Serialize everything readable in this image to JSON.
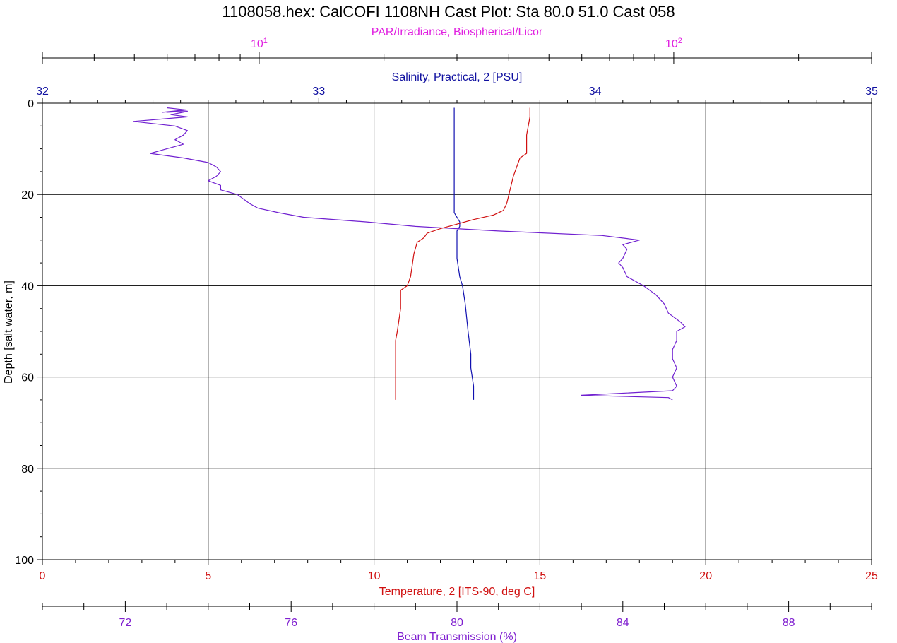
{
  "chart_data": {
    "type": "line",
    "title": "1108058.hex: CalCOFI 1108NH Cast Plot: Sta 80.0 51.0 Cast 058",
    "grid": true,
    "y_axis": {
      "label": "Depth [salt water, m]",
      "range": [
        0,
        100
      ],
      "inverted": true,
      "ticks": [
        "0",
        "20",
        "40",
        "60",
        "80",
        "100"
      ]
    },
    "axes": {
      "par": {
        "label": "PAR/Irradiance, Biospherical/Licor",
        "scale": "log",
        "range": [
          3,
          300
        ],
        "color": "#e020e0",
        "ticks": [
          {
            "value": 10,
            "base": "10",
            "exp": "1"
          },
          {
            "value": 100,
            "base": "10",
            "exp": "2"
          }
        ]
      },
      "salinity": {
        "label": "Salinity, Practical, 2 [PSU]",
        "range": [
          32,
          35
        ],
        "color": "#1010a0",
        "ticks": [
          "32",
          "33",
          "34",
          "35"
        ]
      },
      "temperature": {
        "label": "Temperature, 2 [ITS-90, deg C]",
        "range": [
          0,
          25
        ],
        "color": "#d01010",
        "ticks": [
          "0",
          "5",
          "10",
          "15",
          "20",
          "25"
        ]
      },
      "beam": {
        "label": "Beam Transmission (%)",
        "range": [
          70,
          90
        ],
        "color": "#8020d0",
        "ticks": [
          "72",
          "76",
          "80",
          "84",
          "88"
        ]
      }
    },
    "series": [
      {
        "axis": "salinity",
        "color": "#1010b0",
        "points": [
          [
            1,
            33.49
          ],
          [
            5,
            33.49
          ],
          [
            10,
            33.49
          ],
          [
            15,
            33.49
          ],
          [
            20,
            33.49
          ],
          [
            24,
            33.49
          ],
          [
            25,
            33.5
          ],
          [
            26,
            33.51
          ],
          [
            27,
            33.51
          ],
          [
            28,
            33.5
          ],
          [
            30,
            33.5
          ],
          [
            34,
            33.5
          ],
          [
            38,
            33.51
          ],
          [
            40,
            33.52
          ],
          [
            44,
            33.53
          ],
          [
            50,
            33.54
          ],
          [
            55,
            33.55
          ],
          [
            58,
            33.55
          ],
          [
            62,
            33.56
          ],
          [
            64,
            33.56
          ],
          [
            65,
            33.56
          ]
        ]
      },
      {
        "axis": "temperature",
        "color": "#d01010",
        "points": [
          [
            1,
            14.7
          ],
          [
            3,
            14.7
          ],
          [
            7,
            14.6
          ],
          [
            11,
            14.6
          ],
          [
            12,
            14.4
          ],
          [
            14,
            14.3
          ],
          [
            16,
            14.2
          ],
          [
            19,
            14.1
          ],
          [
            22,
            14.0
          ],
          [
            23.5,
            13.9
          ],
          [
            24.5,
            13.6
          ],
          [
            25.5,
            13.0
          ],
          [
            26.5,
            12.5
          ],
          [
            27.5,
            12.0
          ],
          [
            28.5,
            11.6
          ],
          [
            29.5,
            11.5
          ],
          [
            30.5,
            11.3
          ],
          [
            33,
            11.2
          ],
          [
            38,
            11.1
          ],
          [
            40,
            11.0
          ],
          [
            41,
            10.8
          ],
          [
            45,
            10.8
          ],
          [
            50,
            10.7
          ],
          [
            52,
            10.65
          ],
          [
            58,
            10.65
          ],
          [
            62,
            10.65
          ],
          [
            65,
            10.65
          ]
        ]
      },
      {
        "axis": "beam",
        "color": "#7020d0",
        "points": [
          [
            1,
            73.0
          ],
          [
            1.5,
            73.5
          ],
          [
            2,
            72.9
          ],
          [
            1.5,
            73.4
          ],
          [
            2,
            73.0
          ],
          [
            1.8,
            73.5
          ],
          [
            2.5,
            73.1
          ],
          [
            3,
            73.5
          ],
          [
            4,
            72.2
          ],
          [
            5,
            73.2
          ],
          [
            6,
            73.5
          ],
          [
            7,
            73.4
          ],
          [
            8,
            73.2
          ],
          [
            9,
            73.4
          ],
          [
            10,
            73.0
          ],
          [
            11,
            72.6
          ],
          [
            12,
            73.4
          ],
          [
            13,
            74.0
          ],
          [
            14,
            74.2
          ],
          [
            15,
            74.3
          ],
          [
            16,
            74.2
          ],
          [
            17,
            74.0
          ],
          [
            18,
            74.3
          ],
          [
            19,
            74.3
          ],
          [
            20,
            74.7
          ],
          [
            22,
            75.0
          ],
          [
            23,
            75.2
          ],
          [
            24,
            75.7
          ],
          [
            25,
            76.3
          ],
          [
            26,
            77.8
          ],
          [
            27,
            79.0
          ],
          [
            28,
            81.0
          ],
          [
            29,
            83.5
          ],
          [
            30,
            84.4
          ],
          [
            31,
            84.0
          ],
          [
            32,
            84.1
          ],
          [
            34,
            84.0
          ],
          [
            35,
            83.9
          ],
          [
            36,
            84.0
          ],
          [
            38,
            84.1
          ],
          [
            40,
            84.5
          ],
          [
            42,
            84.8
          ],
          [
            44,
            85.0
          ],
          [
            46,
            85.1
          ],
          [
            48,
            85.4
          ],
          [
            49,
            85.5
          ],
          [
            50,
            85.3
          ],
          [
            52,
            85.3
          ],
          [
            54,
            85.2
          ],
          [
            56,
            85.2
          ],
          [
            58,
            85.3
          ],
          [
            60,
            85.2
          ],
          [
            62,
            85.3
          ],
          [
            63,
            85.2
          ],
          [
            64,
            83.0
          ],
          [
            64.5,
            85.1
          ],
          [
            65,
            85.2
          ]
        ]
      }
    ]
  }
}
